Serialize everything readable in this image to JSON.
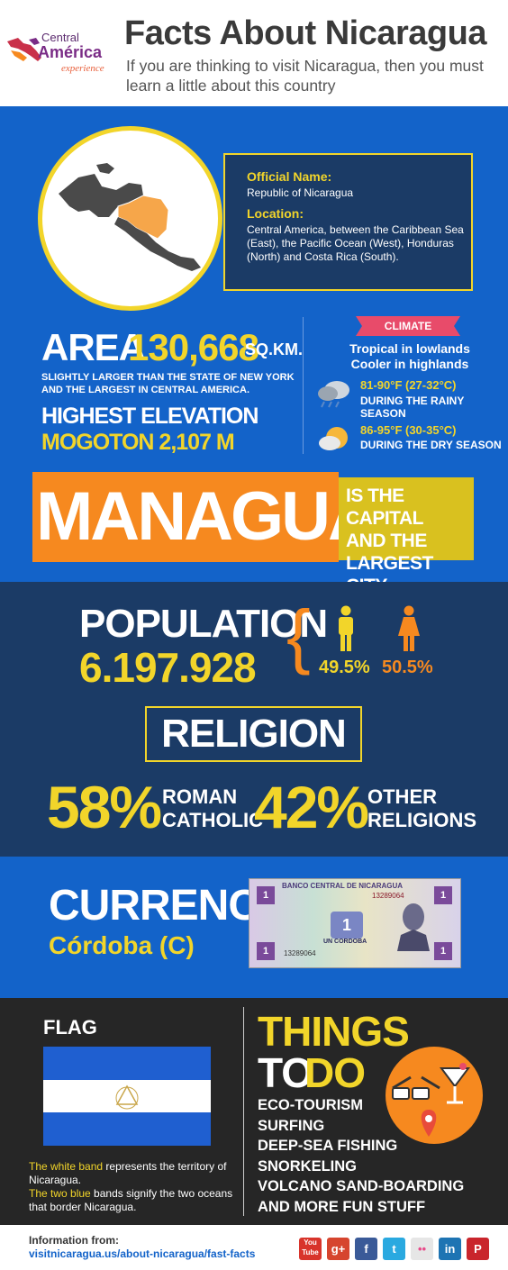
{
  "header": {
    "logo": {
      "line1": "Central",
      "line2": "América",
      "line3": "experience"
    },
    "title": "Facts About Nicaragua",
    "subtitle": "If you are thinking to visit Nicaragua, then you must learn a little about this country"
  },
  "info": {
    "official_name_label": "Official Name:",
    "official_name": "Republic of Nicaragua",
    "location_label": "Location:",
    "location": "Central America, between the Caribbean Sea (East), the Pacific Ocean (West), Honduras (North) and Costa Rica (South)."
  },
  "area": {
    "label": "AREA",
    "value": "130,668",
    "unit": "SQ.KM.",
    "description": "SLIGHTLY LARGER THAN THE STATE OF NEW YORK AND THE LARGEST IN CENTRAL AMERICA.",
    "elevation_label": "HIGHEST ELEVATION",
    "elevation_value": "MOGOTON 2,107 M"
  },
  "climate": {
    "tag": "CLIMATE",
    "line1": "Tropical in lowlands",
    "line2": "Cooler in highlands",
    "rainy_temp": "81-90°F (27-32°C)",
    "rainy_label": "DURING THE RAINY SEASON",
    "dry_temp": "86-95°F (30-35°C)",
    "dry_label": "DURING THE DRY SEASON"
  },
  "capital": {
    "city": "MANAGUA",
    "line1": "IS THE CAPITAL",
    "line2": "AND THE",
    "line3": "LARGEST CITY"
  },
  "population": {
    "label": "POPULATION",
    "value": "6.197.928",
    "male_pct": "49.5%",
    "female_pct": "50.5%"
  },
  "religion": {
    "label": "RELIGION",
    "pct1": "58%",
    "label1_line1": "ROMAN",
    "label1_line2": "CATHOLIC",
    "pct2": "42%",
    "label2_line1": "OTHER",
    "label2_line2": "RELIGIONS"
  },
  "currency": {
    "label": "CURRENCY",
    "value": "Córdoba (C)",
    "note_bank": "BANCO CENTRAL DE NICARAGUA",
    "note_serial": "13289064",
    "note_denom": "UN CORDOBA",
    "note_digit": "1"
  },
  "flag": {
    "label": "FLAG",
    "desc_hl1": "The white band",
    "desc1": " represents the territory of Nicaragua.",
    "desc_hl2": "The two blue",
    "desc2": " bands signify the two oceans that border Nicaragua."
  },
  "things": {
    "title_line1": "THINGS",
    "title_to": "TO",
    "title_do": "DO",
    "items": [
      "ECO-TOURISM",
      "SURFING",
      "DEEP-SEA FISHING",
      "SNORKELING",
      "VOLCANO SAND-BOARDING",
      "AND MORE FUN STUFF"
    ]
  },
  "footer": {
    "label": "Information from:",
    "link": "visitnicaragua.us/about-nicaragua/fast-facts",
    "social": [
      {
        "name": "youtube-icon",
        "glyph": "You Tube",
        "color": "#d8342b"
      },
      {
        "name": "google-plus-icon",
        "glyph": "g+",
        "color": "#d6452e"
      },
      {
        "name": "facebook-icon",
        "glyph": "f",
        "color": "#3a5a98"
      },
      {
        "name": "twitter-icon",
        "glyph": "t",
        "color": "#2aa9e0"
      },
      {
        "name": "flickr-icon",
        "glyph": "••",
        "color": "#e6e6e6"
      },
      {
        "name": "linkedin-icon",
        "glyph": "in",
        "color": "#1e74b3"
      },
      {
        "name": "pinterest-icon",
        "glyph": "P",
        "color": "#c9252c"
      }
    ]
  },
  "colors": {
    "blue": "#1363c9",
    "navy": "#1b3b66",
    "yellow": "#f2d52a",
    "orange": "#f6891f",
    "dark": "#262626"
  }
}
